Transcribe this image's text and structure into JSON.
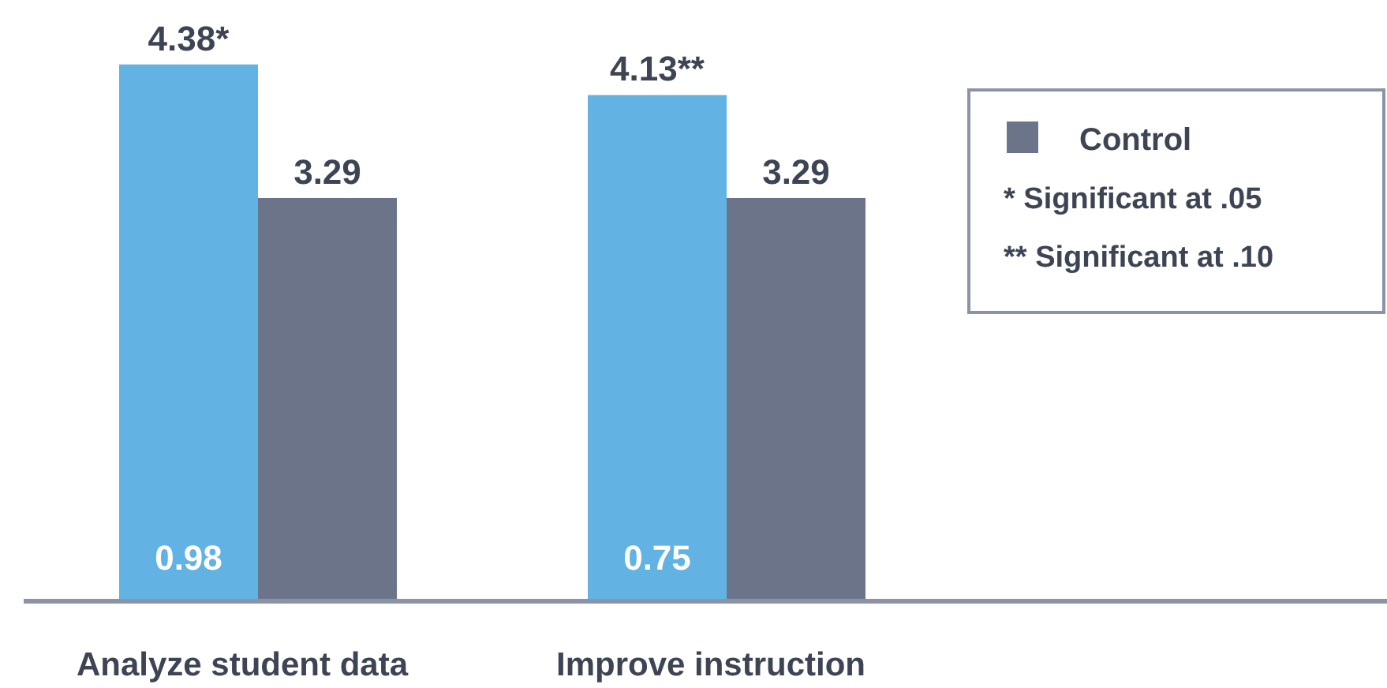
{
  "chart_data": {
    "type": "bar",
    "categories": [
      "Analyze student data",
      "Improve instruction"
    ],
    "series": [
      {
        "color": "#62b3e4",
        "values": [
          4.38,
          4.13
        ],
        "value_labels": [
          "4.38*",
          "4.13**"
        ]
      },
      {
        "name": "Control",
        "color": "#6b7489",
        "values": [
          3.29,
          3.29
        ],
        "value_labels": [
          "3.29",
          "3.29"
        ]
      }
    ],
    "legend": "right",
    "annotations": [
      "0.98",
      "0.75",
      "* Significant at .05",
      "** Significant at .10"
    ]
  }
}
